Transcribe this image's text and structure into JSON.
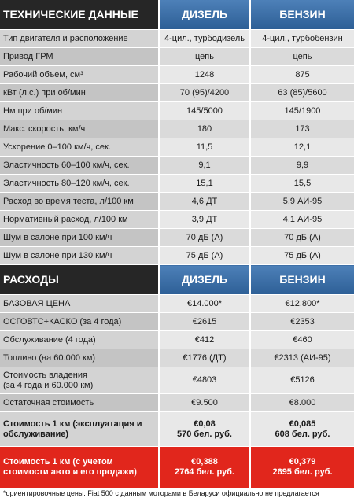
{
  "sections": [
    {
      "header": [
        "ТЕХНИЧЕСКИЕ ДАННЫЕ",
        "ДИЗЕЛЬ",
        "БЕНЗИН"
      ],
      "rows": [
        [
          "Тип двигателя и расположение",
          "4-цил., турбодизель",
          "4-цил., турбобензин"
        ],
        [
          "Привод ГРМ",
          "цепь",
          "цепь"
        ],
        [
          "Рабочий объем, см³",
          "1248",
          "875"
        ],
        [
          "кВт (л.с.) при об/мин",
          "70 (95)/4200",
          "63 (85)/5600"
        ],
        [
          "Нм при об/мин",
          "145/5000",
          "145/1900"
        ],
        [
          "Макс. скорость, км/ч",
          "180",
          "173"
        ],
        [
          "Ускорение 0–100 км/ч, сек.",
          "11,5",
          "12,1"
        ],
        [
          "Эластичность 60–100 км/ч, сек.",
          "9,1",
          "9,9"
        ],
        [
          "Эластичность 80–120 км/ч, сек.",
          "15,1",
          "15,5"
        ],
        [
          "Расход во время теста, л/100 км",
          "4,6 ДТ",
          "5,9 АИ-95"
        ],
        [
          "Нормативный расход, л/100 км",
          "3,9 ДТ",
          "4,1 АИ-95"
        ],
        [
          "Шум в салоне при 100 км/ч",
          "70 дБ (А)",
          "70 дБ (А)"
        ],
        [
          "Шум в салоне при 130 км/ч",
          "75 дБ (А)",
          "75 дБ (А)"
        ]
      ]
    },
    {
      "header": [
        "РАСХОДЫ",
        "ДИЗЕЛЬ",
        "БЕНЗИН"
      ],
      "rows": [
        [
          "БАЗОВАЯ ЦЕНА",
          "€14.000*",
          "€12.800*"
        ],
        [
          "ОСГОВТС+КАСКО (за 4 года)",
          "€2615",
          "€2353"
        ],
        [
          "Обслуживание (4 года)",
          "€412",
          "€460"
        ],
        [
          "Топливо (на 60.000 км)",
          "€1776 (ДТ)",
          "€2313 (АИ-95)"
        ],
        [
          "Стоимость владения\n(за 4 года и 60.000 км)",
          "€4803",
          "€5126"
        ],
        [
          "Остаточная стоимость",
          "€9.500",
          "€8.000"
        ],
        [
          "Стоимость 1 км (эксплуатация и обслуживание)",
          "€0,08\n570 бел. руб.",
          "€0,085\n608 бел. руб."
        ],
        [
          "Стоимость 1 км (с учетом стоимости авто и его продажи)",
          "€0,388\n2764 бел. руб.",
          "€0,379\n2695 бел. руб."
        ]
      ]
    }
  ],
  "footnote": "*ориентировочные цены. Fiat 500 с данным моторами в Беларуси официально не предлагается"
}
